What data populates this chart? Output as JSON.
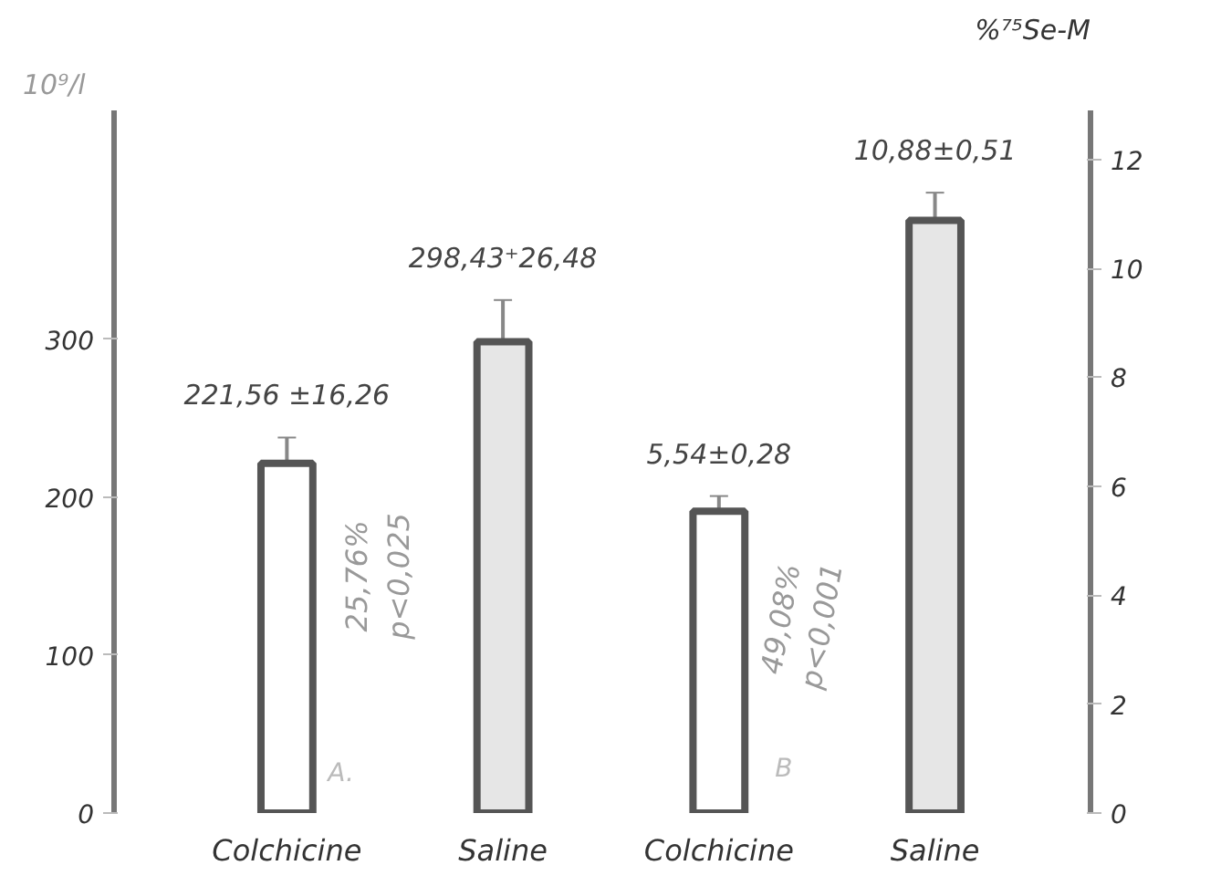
{
  "chart_data": {
    "type": "bar",
    "categories": [
      "Colchicine",
      "Saline",
      "Colchicine",
      "Saline"
    ],
    "ylabel": "10⁹/l",
    "y2label": "%⁷⁵Se-M",
    "series": [
      {
        "values": [
          221.56,
          298.43,
          null,
          null
        ],
        "colors": [
          "#ffffff",
          "#e6e6e6",
          "#ffffff",
          "#e6e6e6"
        ],
        "errors": [
          16.26,
          26.48,
          null,
          null
        ],
        "value_labels": [
          "221,56 ±16,26",
          "298,43⁺26,48",
          null,
          null
        ]
      },
      {
        "axis": "y2",
        "values": [
          null,
          null,
          5.54,
          10.88
        ],
        "colors": [
          "#ffffff",
          "#e6e6e6",
          "#ffffff",
          "#e6e6e6"
        ],
        "errors": [
          null,
          null,
          0.28,
          0.51
        ],
        "value_labels": [
          null,
          null,
          "5,54±0,28",
          "10,88±0,51"
        ]
      }
    ],
    "ylim": [
      0,
      445
    ],
    "yticks": [
      0,
      100,
      200,
      300
    ],
    "y2lim": [
      0,
      12.9
    ],
    "y2ticks": [
      0,
      2,
      4,
      6,
      8,
      10,
      12
    ],
    "annotations": [
      "25,76% p<0,025",
      "49,08% p<0,001",
      "A.",
      "B"
    ],
    "grid": false
  }
}
